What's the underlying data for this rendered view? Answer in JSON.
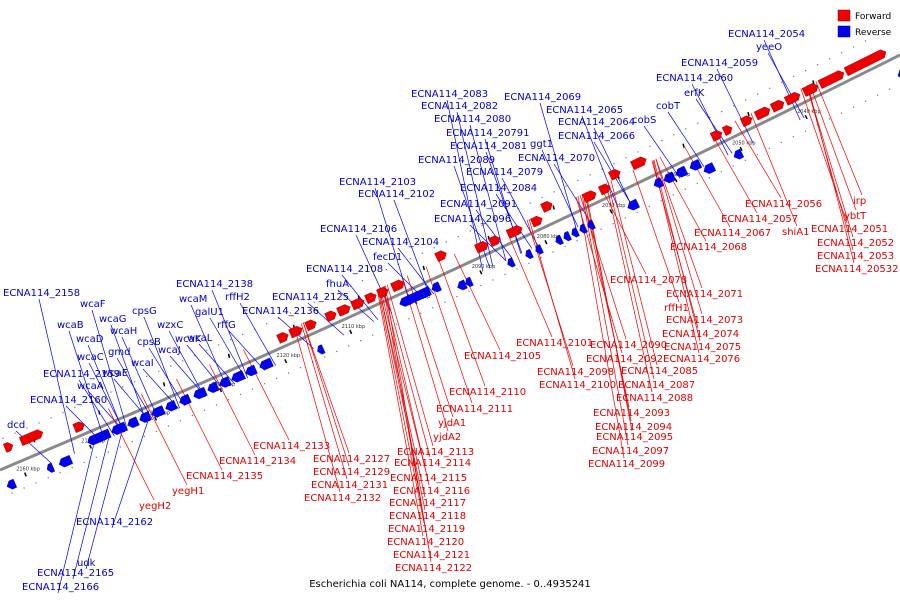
{
  "legend": {
    "forward": "Forward",
    "reverse": "Reverse"
  },
  "caption": "Escherichia coli NA114, complete genome. - 0..4935241",
  "colors": {
    "forward": "#ee0000",
    "reverse": "#0000ee",
    "backbone": "#999999"
  },
  "ticks": [
    "2040 kbp",
    "2050 kbp",
    "2060 kbp",
    "2070 kbp",
    "2080 kbp",
    "2090 kbp",
    "2100 kbp",
    "2110 kbp",
    "2120 kbp",
    "2130 kbp",
    "2140 kbp",
    "2150 kbp",
    "2160 kbp"
  ],
  "reverse_labels": [
    "ECNA114_2054",
    "yeeO",
    "ECNA114_2059",
    "ECNA114_2060",
    "erfK",
    "ECNA114_2083",
    "ECNA114_2069",
    "ECNA114_2082",
    "ECNA114_2065",
    "cobT",
    "ECNA114_2080",
    "ECNA114_2064",
    "cobS",
    "ECNA114_20791",
    "ECNA114_2066",
    "ECNA114_2081",
    "ggt1",
    "ECNA114_2089",
    "ECNA114_2070",
    "ECNA114_2079",
    "ECNA114_2103",
    "ECNA114_2084",
    "ECNA114_2102",
    "ECNA114_2091",
    "ECNA114_2096",
    "ECNA114_2106",
    "ECNA114_2104",
    "fecD1",
    "ECNA114_2108",
    "fhuA",
    "ECNA114_2138",
    "wcaM",
    "rffH2",
    "ECNA114_2125",
    "ECNA114_2158",
    "galU1",
    "ECNA114_2136",
    "wcaF",
    "cpsG",
    "rffG",
    "wcaB",
    "wcaG",
    "wzxC",
    "wcaK",
    "wcaD",
    "wcaH",
    "cpsB",
    "wcaL",
    "gmd",
    "wcaJ",
    "wcaC",
    "wcaI",
    "ECNA114_2159",
    "wcaE",
    "wcaA",
    "ECNA114_2160",
    "dcd",
    "ECNA114_2162",
    "udk",
    "ECNA114_2165",
    "ECNA114_2166"
  ],
  "forward_labels": [
    "irp",
    "ECNA114_2056",
    "ybtT",
    "ECNA114_2057",
    "ECNA114_2051",
    "shiA1",
    "ECNA114_2067",
    "ECNA114_2052",
    "ECNA114_2068",
    "ECNA114_2053",
    "ECNA114_20532",
    "ECNA114_2078",
    "ECNA114_2071",
    "rffH1",
    "ECNA114_2073",
    "ECNA114_2074",
    "ECNA114_2101",
    "ECNA114_2090",
    "ECNA114_2075",
    "ECNA114_2105",
    "ECNA114_2092",
    "ECNA114_2076",
    "ECNA114_2098",
    "ECNA114_2085",
    "ECNA114_2100",
    "ECNA114_2087",
    "ECNA114_2110",
    "ECNA114_2088",
    "ECNA114_2111",
    "ECNA114_2093",
    "yjdA1",
    "ECNA114_2094",
    "yjdA2",
    "ECNA114_2095",
    "ECNA114_2133",
    "ECNA114_2113",
    "ECNA114_2097",
    "ECNA114_2127",
    "ECNA114_2134",
    "ECNA114_2114",
    "ECNA114_2099",
    "ECNA114_2129",
    "ECNA114_2135",
    "ECNA114_2115",
    "ECNA114_2131",
    "yegH1",
    "ECNA114_2116",
    "ECNA114_2132",
    "ECNA114_2117",
    "yegH2",
    "ECNA114_2118",
    "ECNA114_2119",
    "ECNA114_2120",
    "ECNA114_2121",
    "ECNA114_2122"
  ]
}
